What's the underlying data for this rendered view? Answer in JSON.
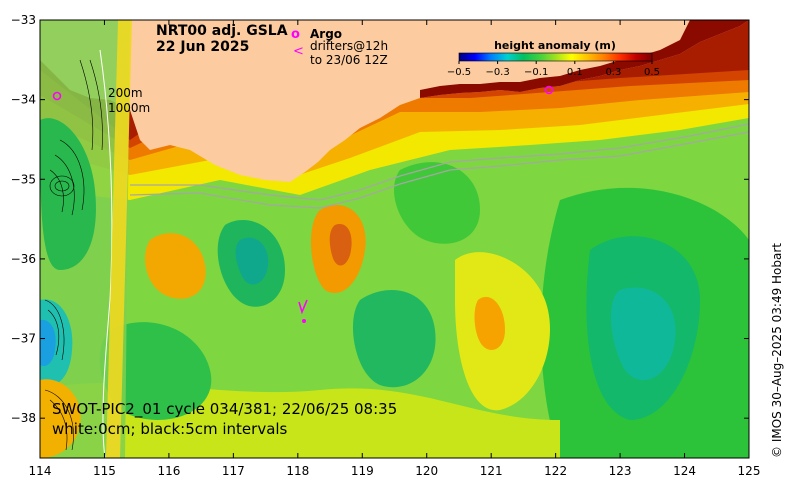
{
  "title": {
    "product": "NRT00 adj. GSLA",
    "date": "22 Jun 2025"
  },
  "legend": {
    "argo_symbol": "o",
    "argo_label": "Argo",
    "drifter_symbol": "<",
    "drifter_label_1": "drifters@12h",
    "drifter_label_2": "to 23/06 12Z"
  },
  "isobaths": {
    "shallow": "200m",
    "deep": "1000m"
  },
  "colorbar": {
    "title": "height anomaly (m)",
    "min": -0.5,
    "max": 0.5,
    "ticks": [
      "−0.5",
      "−0.3",
      "−0.1",
      "0.1",
      "0.3",
      "0.5"
    ],
    "colors": [
      "#00007f",
      "#0000ff",
      "#0080ff",
      "#00d0d0",
      "#00c060",
      "#40d040",
      "#a0e020",
      "#ffff00",
      "#ffc000",
      "#ff7f00",
      "#ff3000",
      "#c00000",
      "#7f0000"
    ]
  },
  "swot_note": {
    "line1": "SWOT-PIC2_01 cycle 034/381; 22/06/25 08:35",
    "line2": "white:0cm; black:5cm intervals"
  },
  "credit": "© IMOS 30–Aug–2025 03:49 Hobart",
  "axes": {
    "x_ticks": [
      "114",
      "115",
      "116",
      "117",
      "118",
      "119",
      "120",
      "121",
      "122",
      "123",
      "124",
      "125"
    ],
    "y_ticks": [
      "−33",
      "−34",
      "−35",
      "−36",
      "−37",
      "−38"
    ],
    "lon_range": [
      114,
      125
    ],
    "lat_range": [
      -38.5,
      -33
    ]
  },
  "colors": {
    "land": "#fccb9f",
    "argo": "#ff00ff",
    "drifter": "#ff00ff",
    "isobath": "#9a9a9a"
  }
}
